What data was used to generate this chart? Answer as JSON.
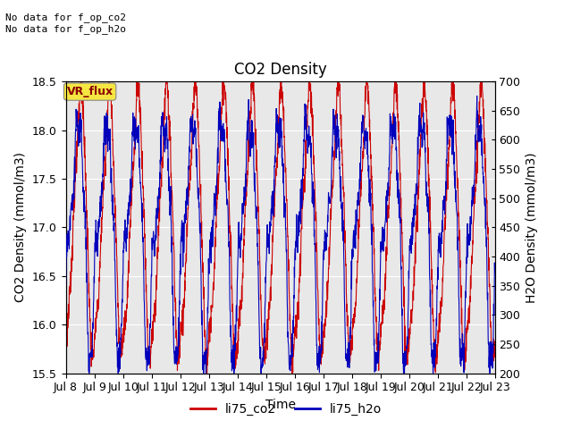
{
  "title": "CO2 Density",
  "xlabel": "Time",
  "ylabel_left": "CO2 Density (mmol/m3)",
  "ylabel_right": "H2O Density (mmol/m3)",
  "ylim_left": [
    15.5,
    18.5
  ],
  "ylim_right": [
    200,
    700
  ],
  "yticks_left": [
    15.5,
    16.0,
    16.5,
    17.0,
    17.5,
    18.0,
    18.5
  ],
  "yticks_right": [
    200,
    250,
    300,
    350,
    400,
    450,
    500,
    550,
    600,
    650,
    700
  ],
  "xtick_labels": [
    "Jul 8",
    "Jul 9",
    "Jul 10",
    "Jul 11",
    "Jul 12",
    "Jul 13",
    "Jul 14",
    "Jul 15",
    "Jul 16",
    "Jul 17",
    "Jul 18",
    "Jul 19",
    "Jul 20",
    "Jul 21",
    "Jul 22",
    "Jul 23"
  ],
  "color_co2": "#cc0000",
  "color_h2o": "#0000bb",
  "annotation_text": "No data for f_op_co2\nNo data for f_op_h2o",
  "vr_flux_label": "VR_flux",
  "legend_co2": "li75_co2",
  "legend_h2o": "li75_h2o",
  "bg_color": "#e8e8e8",
  "title_fontsize": 12,
  "axis_fontsize": 10,
  "tick_fontsize": 9,
  "legend_fontsize": 10
}
